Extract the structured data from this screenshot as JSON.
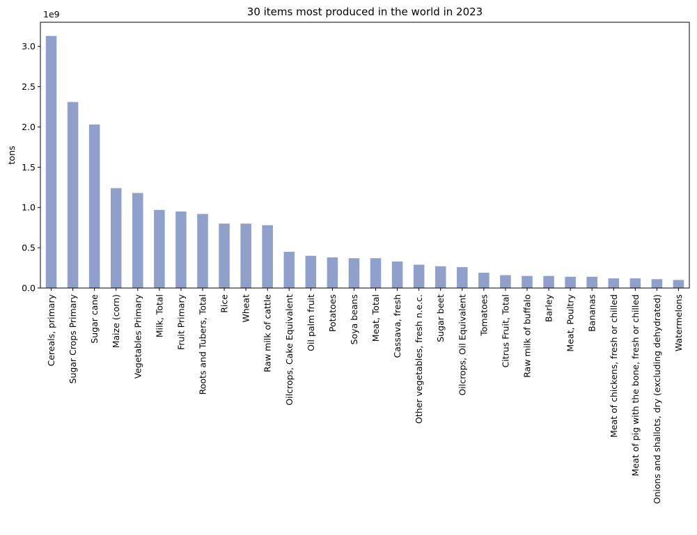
{
  "chart_data": {
    "type": "bar",
    "title": "30 items most produced in the world in 2023",
    "xlabel": "",
    "ylabel": "tons",
    "y_offset_text": "1e9",
    "ylim": [
      0,
      3.3
    ],
    "y_ticks": [
      0,
      0.5,
      1.0,
      1.5,
      2.0,
      2.5,
      3.0
    ],
    "y_tick_labels": [
      "0.0",
      "0.5",
      "1.0",
      "1.5",
      "2.0",
      "2.5",
      "3.0"
    ],
    "grid": false,
    "legend": "none",
    "bar_color": "#8FA0CB",
    "categories": [
      "Cereals, primary",
      "Sugar Crops Primary",
      "Sugar cane",
      "Maize (corn)",
      "Vegetables Primary",
      "Milk, Total",
      "Fruit Primary",
      "Roots and Tubers, Total",
      "Rice",
      "Wheat",
      "Raw milk of cattle",
      "Oilcrops, Cake Equivalent",
      "Oil palm fruit",
      "Potatoes",
      "Soya beans",
      "Meat, Total",
      "Cassava, fresh",
      "Other vegetables, fresh n.e.c.",
      "Sugar beet",
      "Oilcrops, Oil Equivalent",
      "Tomatoes",
      "Citrus Fruit, Total",
      "Raw milk of buffalo",
      "Barley",
      "Meat, Poultry",
      "Bananas",
      "Meat of chickens, fresh or chilled",
      "Meat of pig with the bone, fresh or chilled",
      "Onions and shallots, dry (excluding dehydrated)",
      "Watermelons"
    ],
    "values": [
      3.13,
      2.31,
      2.03,
      1.24,
      1.18,
      0.97,
      0.95,
      0.92,
      0.8,
      0.8,
      0.78,
      0.45,
      0.4,
      0.38,
      0.37,
      0.37,
      0.33,
      0.29,
      0.27,
      0.26,
      0.19,
      0.16,
      0.15,
      0.15,
      0.14,
      0.14,
      0.12,
      0.12,
      0.11,
      0.1
    ]
  }
}
